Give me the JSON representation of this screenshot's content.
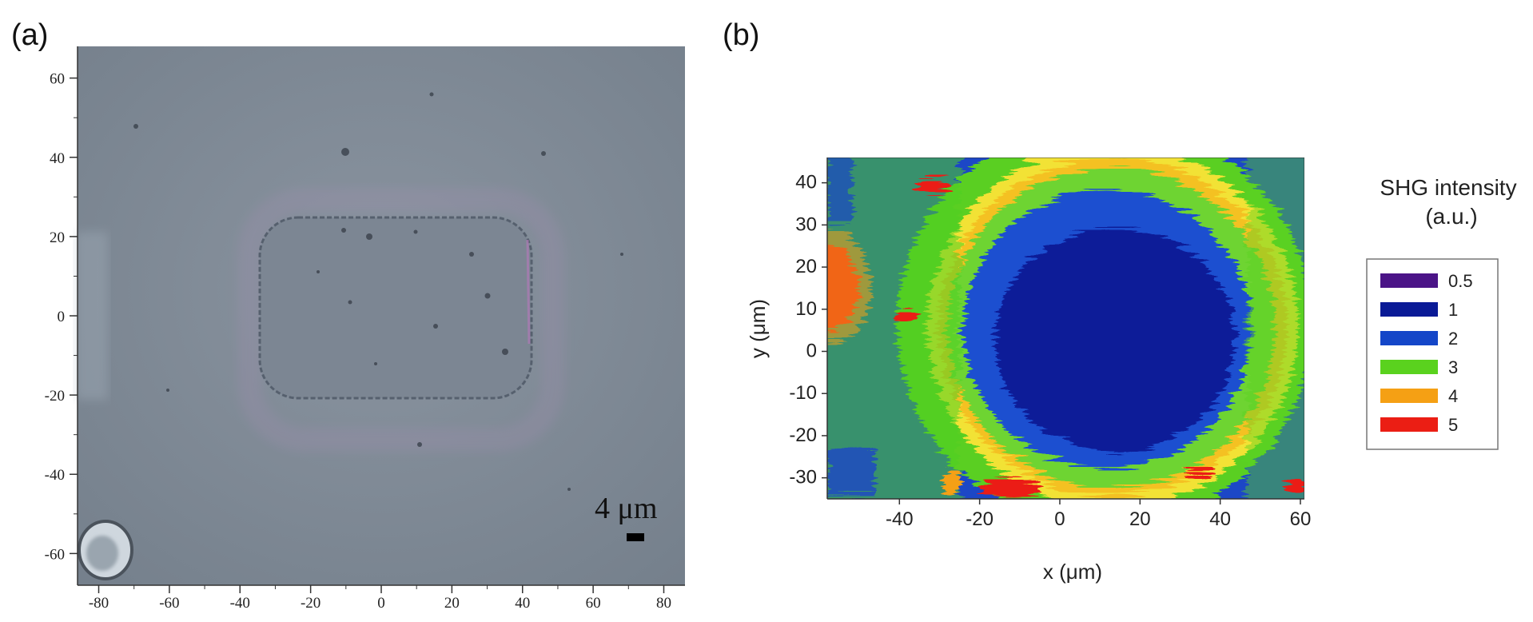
{
  "panels": {
    "a": {
      "label": "(a)"
    },
    "b": {
      "label": "(b)"
    }
  },
  "scale_bar": {
    "text": "4 μm"
  },
  "colors": {
    "micrograph_bg": "#7f8a96",
    "map_colors": [
      "#4b1487",
      "#0a1a96",
      "#1446c8",
      "#5ad21e",
      "#f5a014",
      "#eb1e14"
    ]
  },
  "chart_data": [
    {
      "type": "image",
      "title": "",
      "xlabel": "",
      "ylabel": "",
      "xlim": [
        -86,
        86
      ],
      "ylim": [
        -68,
        68
      ],
      "xticks": [
        "-80",
        "-60",
        "-40",
        "-20",
        "0",
        "20",
        "40",
        "60",
        "80"
      ],
      "yticks": [
        "60",
        "40",
        "20",
        "0",
        "-20",
        "-40",
        "-60"
      ]
    },
    {
      "type": "heatmap",
      "title": "",
      "xlabel": "x (μm)",
      "ylabel": "y (μm)",
      "xlim": [
        -58,
        61
      ],
      "ylim": [
        -35,
        46
      ],
      "xticks": [
        "-40",
        "-20",
        "0",
        "20",
        "40",
        "60"
      ],
      "yticks": [
        "40",
        "30",
        "20",
        "10",
        "0",
        "-10",
        "-20",
        "-30"
      ],
      "legend": {
        "title_lines": [
          "SHG intensity",
          "(a.u.)"
        ],
        "placement": "right",
        "levels": [
          "0.5",
          "1",
          "2",
          "3",
          "4",
          "5"
        ]
      }
    }
  ]
}
